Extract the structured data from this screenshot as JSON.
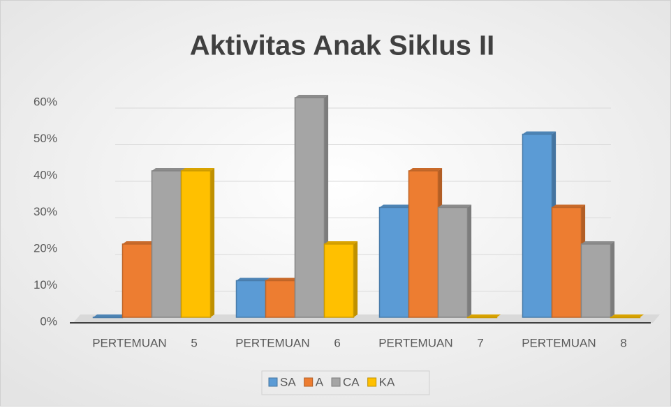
{
  "chart_data": {
    "type": "bar",
    "title": "Aktivitas Anak Siklus II",
    "categories": [
      "PERTEMUAN 5",
      "PERTEMUAN 6",
      "PERTEMUAN 7",
      "PERTEMUAN 8"
    ],
    "series": [
      {
        "name": "SA",
        "color": "#5b9bd5",
        "values": [
          0,
          10,
          30,
          50
        ]
      },
      {
        "name": "A",
        "color": "#ed7d31",
        "values": [
          20,
          10,
          40,
          30
        ]
      },
      {
        "name": "CA",
        "color": "#a5a5a5",
        "values": [
          40,
          60,
          30,
          20
        ]
      },
      {
        "name": "KA",
        "color": "#ffc000",
        "values": [
          40,
          20,
          0,
          0
        ]
      }
    ],
    "ylim": [
      0,
      60
    ],
    "yticks": [
      {
        "value": 0,
        "label": "0%"
      },
      {
        "value": 10,
        "label": "10%"
      },
      {
        "value": 20,
        "label": "20%"
      },
      {
        "value": 30,
        "label": "30%"
      },
      {
        "value": 40,
        "label": "40%"
      },
      {
        "value": 50,
        "label": "50%"
      },
      {
        "value": 60,
        "label": "60%"
      }
    ],
    "grid": true,
    "legend": "bottom"
  }
}
